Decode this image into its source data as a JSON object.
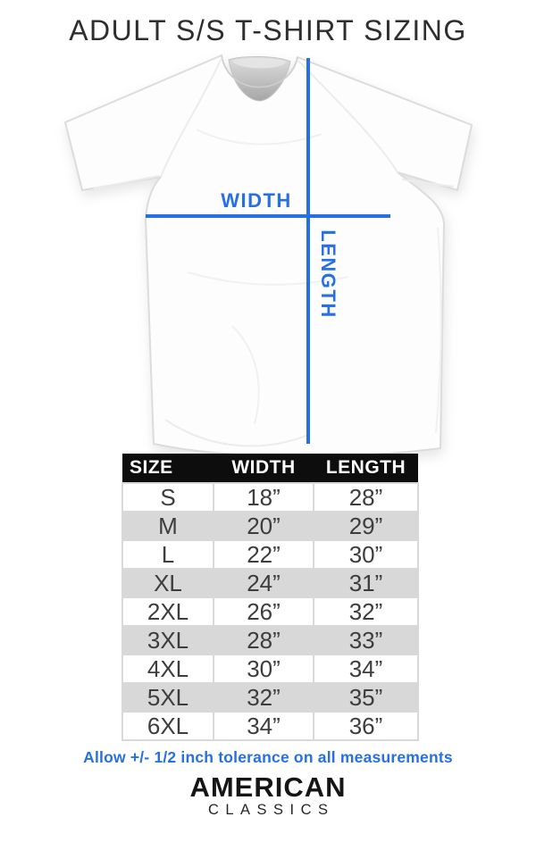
{
  "title": "ADULT S/S T-SHIRT SIZING",
  "diagram": {
    "width_label": "WIDTH",
    "length_label": "LENGTH"
  },
  "table": {
    "headers": [
      "SIZE",
      "WIDTH",
      "LENGTH"
    ],
    "rows": [
      {
        "size": "S",
        "width": "18”",
        "length": "28”"
      },
      {
        "size": "M",
        "width": "20”",
        "length": "29”"
      },
      {
        "size": "L",
        "width": "22”",
        "length": "30”"
      },
      {
        "size": "XL",
        "width": "24”",
        "length": "31”"
      },
      {
        "size": "2XL",
        "width": "26”",
        "length": "32”"
      },
      {
        "size": "3XL",
        "width": "28”",
        "length": "33”"
      },
      {
        "size": "4XL",
        "width": "30”",
        "length": "34”"
      },
      {
        "size": "5XL",
        "width": "32”",
        "length": "35”"
      },
      {
        "size": "6XL",
        "width": "34”",
        "length": "36”"
      }
    ]
  },
  "note": "Allow +/- 1/2 inch tolerance on all measurements",
  "brand": {
    "name": "AMERICAN",
    "subtitle": "CLASSICS"
  },
  "colors": {
    "accent": "#2670e4",
    "header-bg": "#0d0d0d",
    "row-gray": "#d8d8d8",
    "text-dark": "#3d3d3d"
  }
}
